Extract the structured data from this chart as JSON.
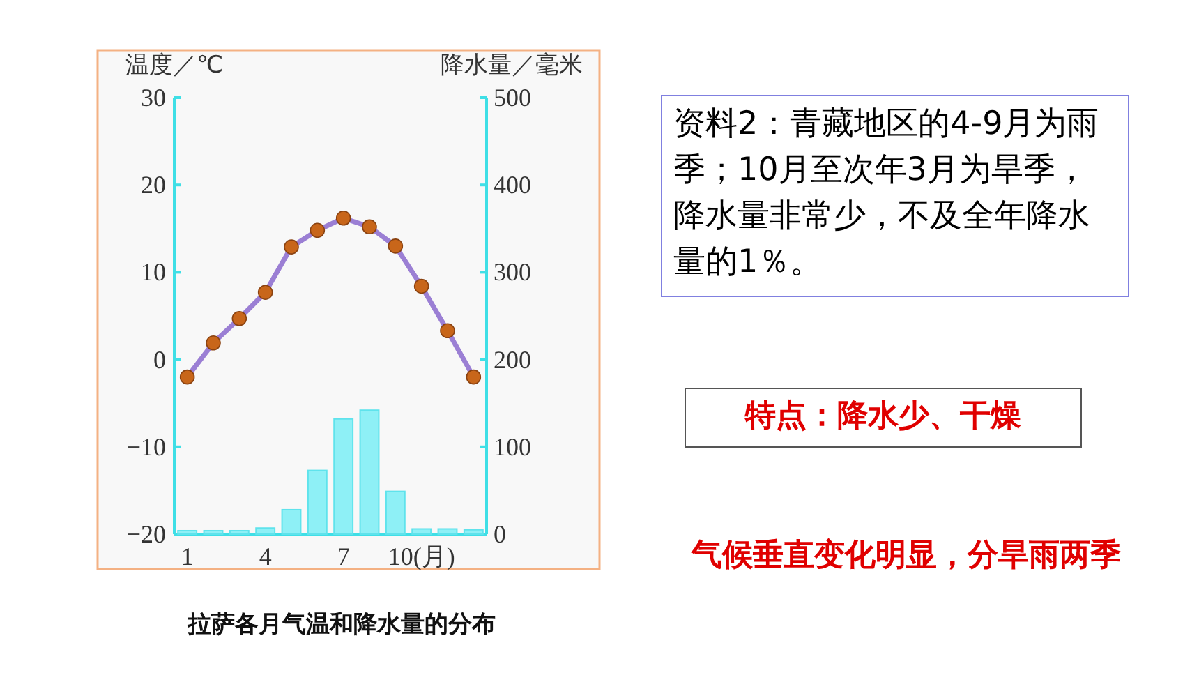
{
  "chart_data": {
    "type": "bar",
    "title": "拉萨各月气温和降水量的分布",
    "ylabel": "温度／℃",
    "y2label": "降水量／毫米",
    "categories": [
      "1",
      null,
      null,
      "4",
      null,
      null,
      "7",
      null,
      null,
      "10(月)",
      null,
      null
    ],
    "ylim": [
      -20,
      30
    ],
    "yticks": [
      -20,
      -10,
      0,
      10,
      20,
      30
    ],
    "y2lim": [
      0,
      500
    ],
    "y2ticks": [
      0,
      100,
      200,
      300,
      400,
      500
    ],
    "marker": "circle",
    "series": [
      {
        "axis": "y2",
        "color": "#8ef0f6",
        "values": [
          4,
          4,
          4,
          7,
          28,
          73,
          132,
          142,
          49,
          6,
          6,
          5
        ]
      },
      {
        "type": "line",
        "axis": "y",
        "color": "#9b7fd4",
        "values": [
          -2.0,
          1.9,
          4.7,
          7.7,
          12.9,
          14.8,
          16.2,
          15.2,
          13.0,
          8.4,
          3.3,
          -2.0
        ]
      }
    ],
    "annotations": [
      "资料2：青藏地区的4-9月为雨季；10月至次年3月为旱季，降水量非常少，不及全年降水量的1％。",
      "特点：降水少、干燥",
      "气候垂直变化明显，分旱雨两季"
    ]
  }
}
